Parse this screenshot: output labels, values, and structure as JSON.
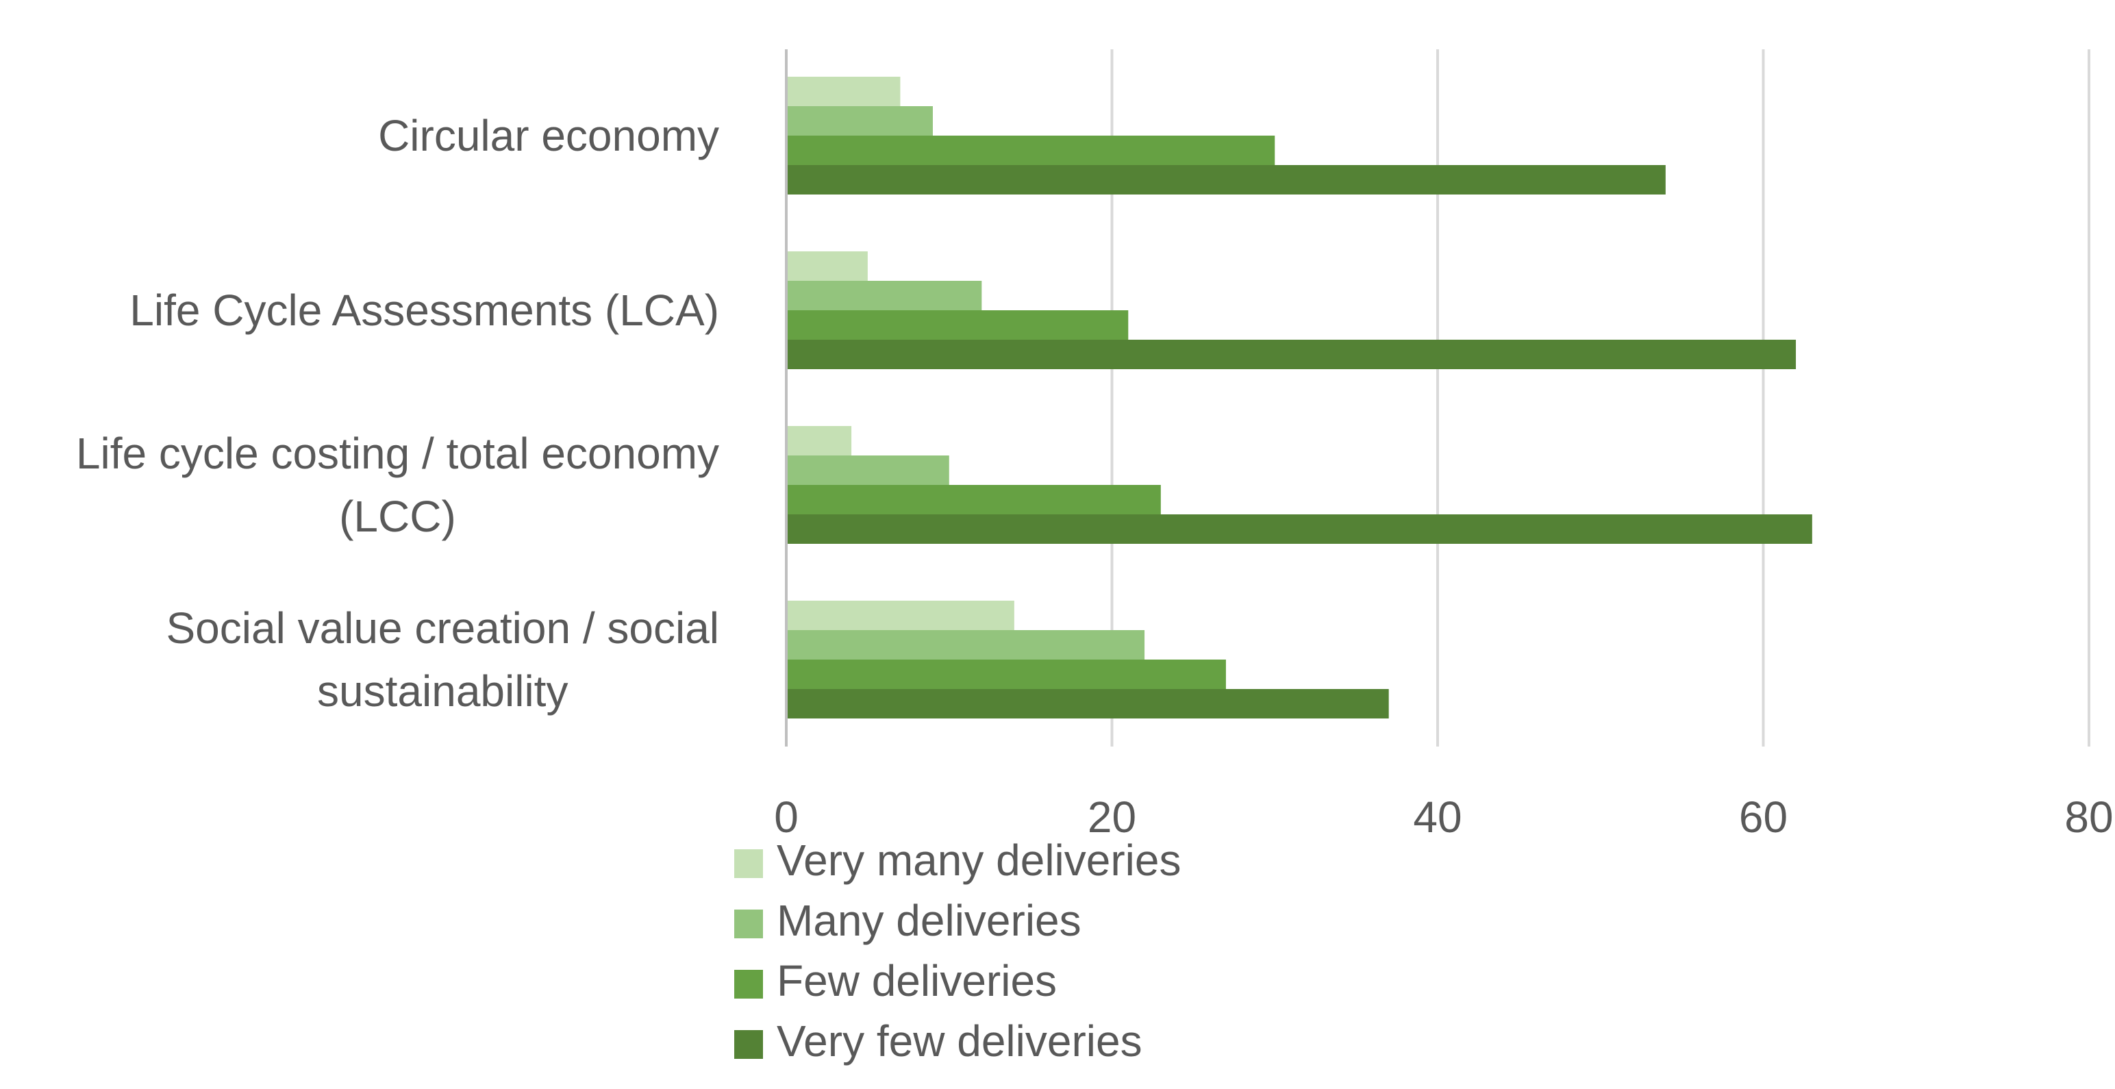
{
  "chart_data": {
    "type": "bar",
    "orientation": "horizontal",
    "title": "",
    "xlabel": "",
    "ylabel": "",
    "xlim": [
      0,
      80
    ],
    "x_ticks": [
      0,
      20,
      40,
      60,
      80
    ],
    "grid": true,
    "legend_position": "bottom",
    "categories": [
      [
        "Circular economy"
      ],
      [
        "Life Cycle Assessments (LCA)"
      ],
      [
        "Life cycle costing / total economy",
        "(LCC)"
      ],
      [
        "Social value creation / social",
        "sustainability"
      ]
    ],
    "series": [
      {
        "name": "Very many deliveries",
        "color": "#c5e0b4",
        "values": [
          7,
          5,
          4,
          14
        ]
      },
      {
        "name": "Many deliveries",
        "color": "#93c47d",
        "values": [
          9,
          12,
          10,
          22
        ]
      },
      {
        "name": "Few deliveries",
        "color": "#66a143",
        "values": [
          30,
          21,
          23,
          27
        ]
      },
      {
        "name": "Very few deliveries",
        "color": "#548235",
        "values": [
          54,
          62,
          63,
          37
        ]
      }
    ]
  }
}
